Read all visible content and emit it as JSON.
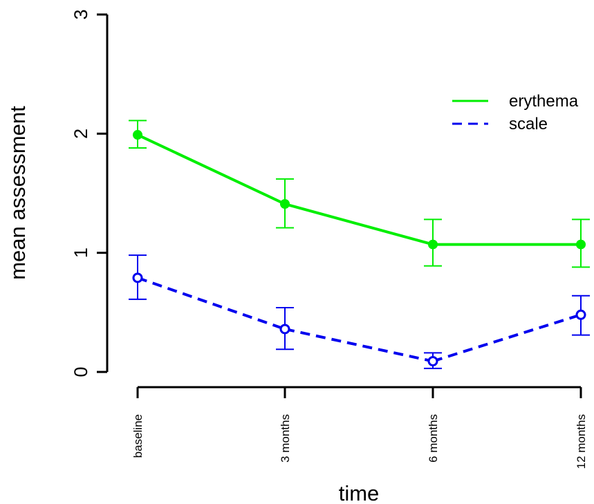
{
  "chart_data": {
    "type": "line",
    "categories": [
      "baseline",
      "3 months",
      "6 months",
      "12 months"
    ],
    "xlabel": "time",
    "ylabel": "mean assessment",
    "ylim": [
      0,
      3
    ],
    "yticks": [
      0,
      1,
      2,
      3
    ],
    "grid": false,
    "legend_position": "top-right",
    "series": [
      {
        "name": "erythema",
        "color": "#00ee00",
        "line_style": "solid",
        "marker": "filled-circle",
        "values": [
          1.99,
          1.41,
          1.07,
          1.07
        ],
        "err_low": [
          1.88,
          1.21,
          0.89,
          0.88
        ],
        "err_high": [
          2.11,
          1.62,
          1.28,
          1.28
        ]
      },
      {
        "name": "scale",
        "color": "#0000ee",
        "line_style": "dashed",
        "marker": "open-circle",
        "values": [
          0.79,
          0.36,
          0.09,
          0.48
        ],
        "err_low": [
          0.61,
          0.19,
          0.03,
          0.31
        ],
        "err_high": [
          0.98,
          0.54,
          0.16,
          0.64
        ]
      }
    ]
  }
}
